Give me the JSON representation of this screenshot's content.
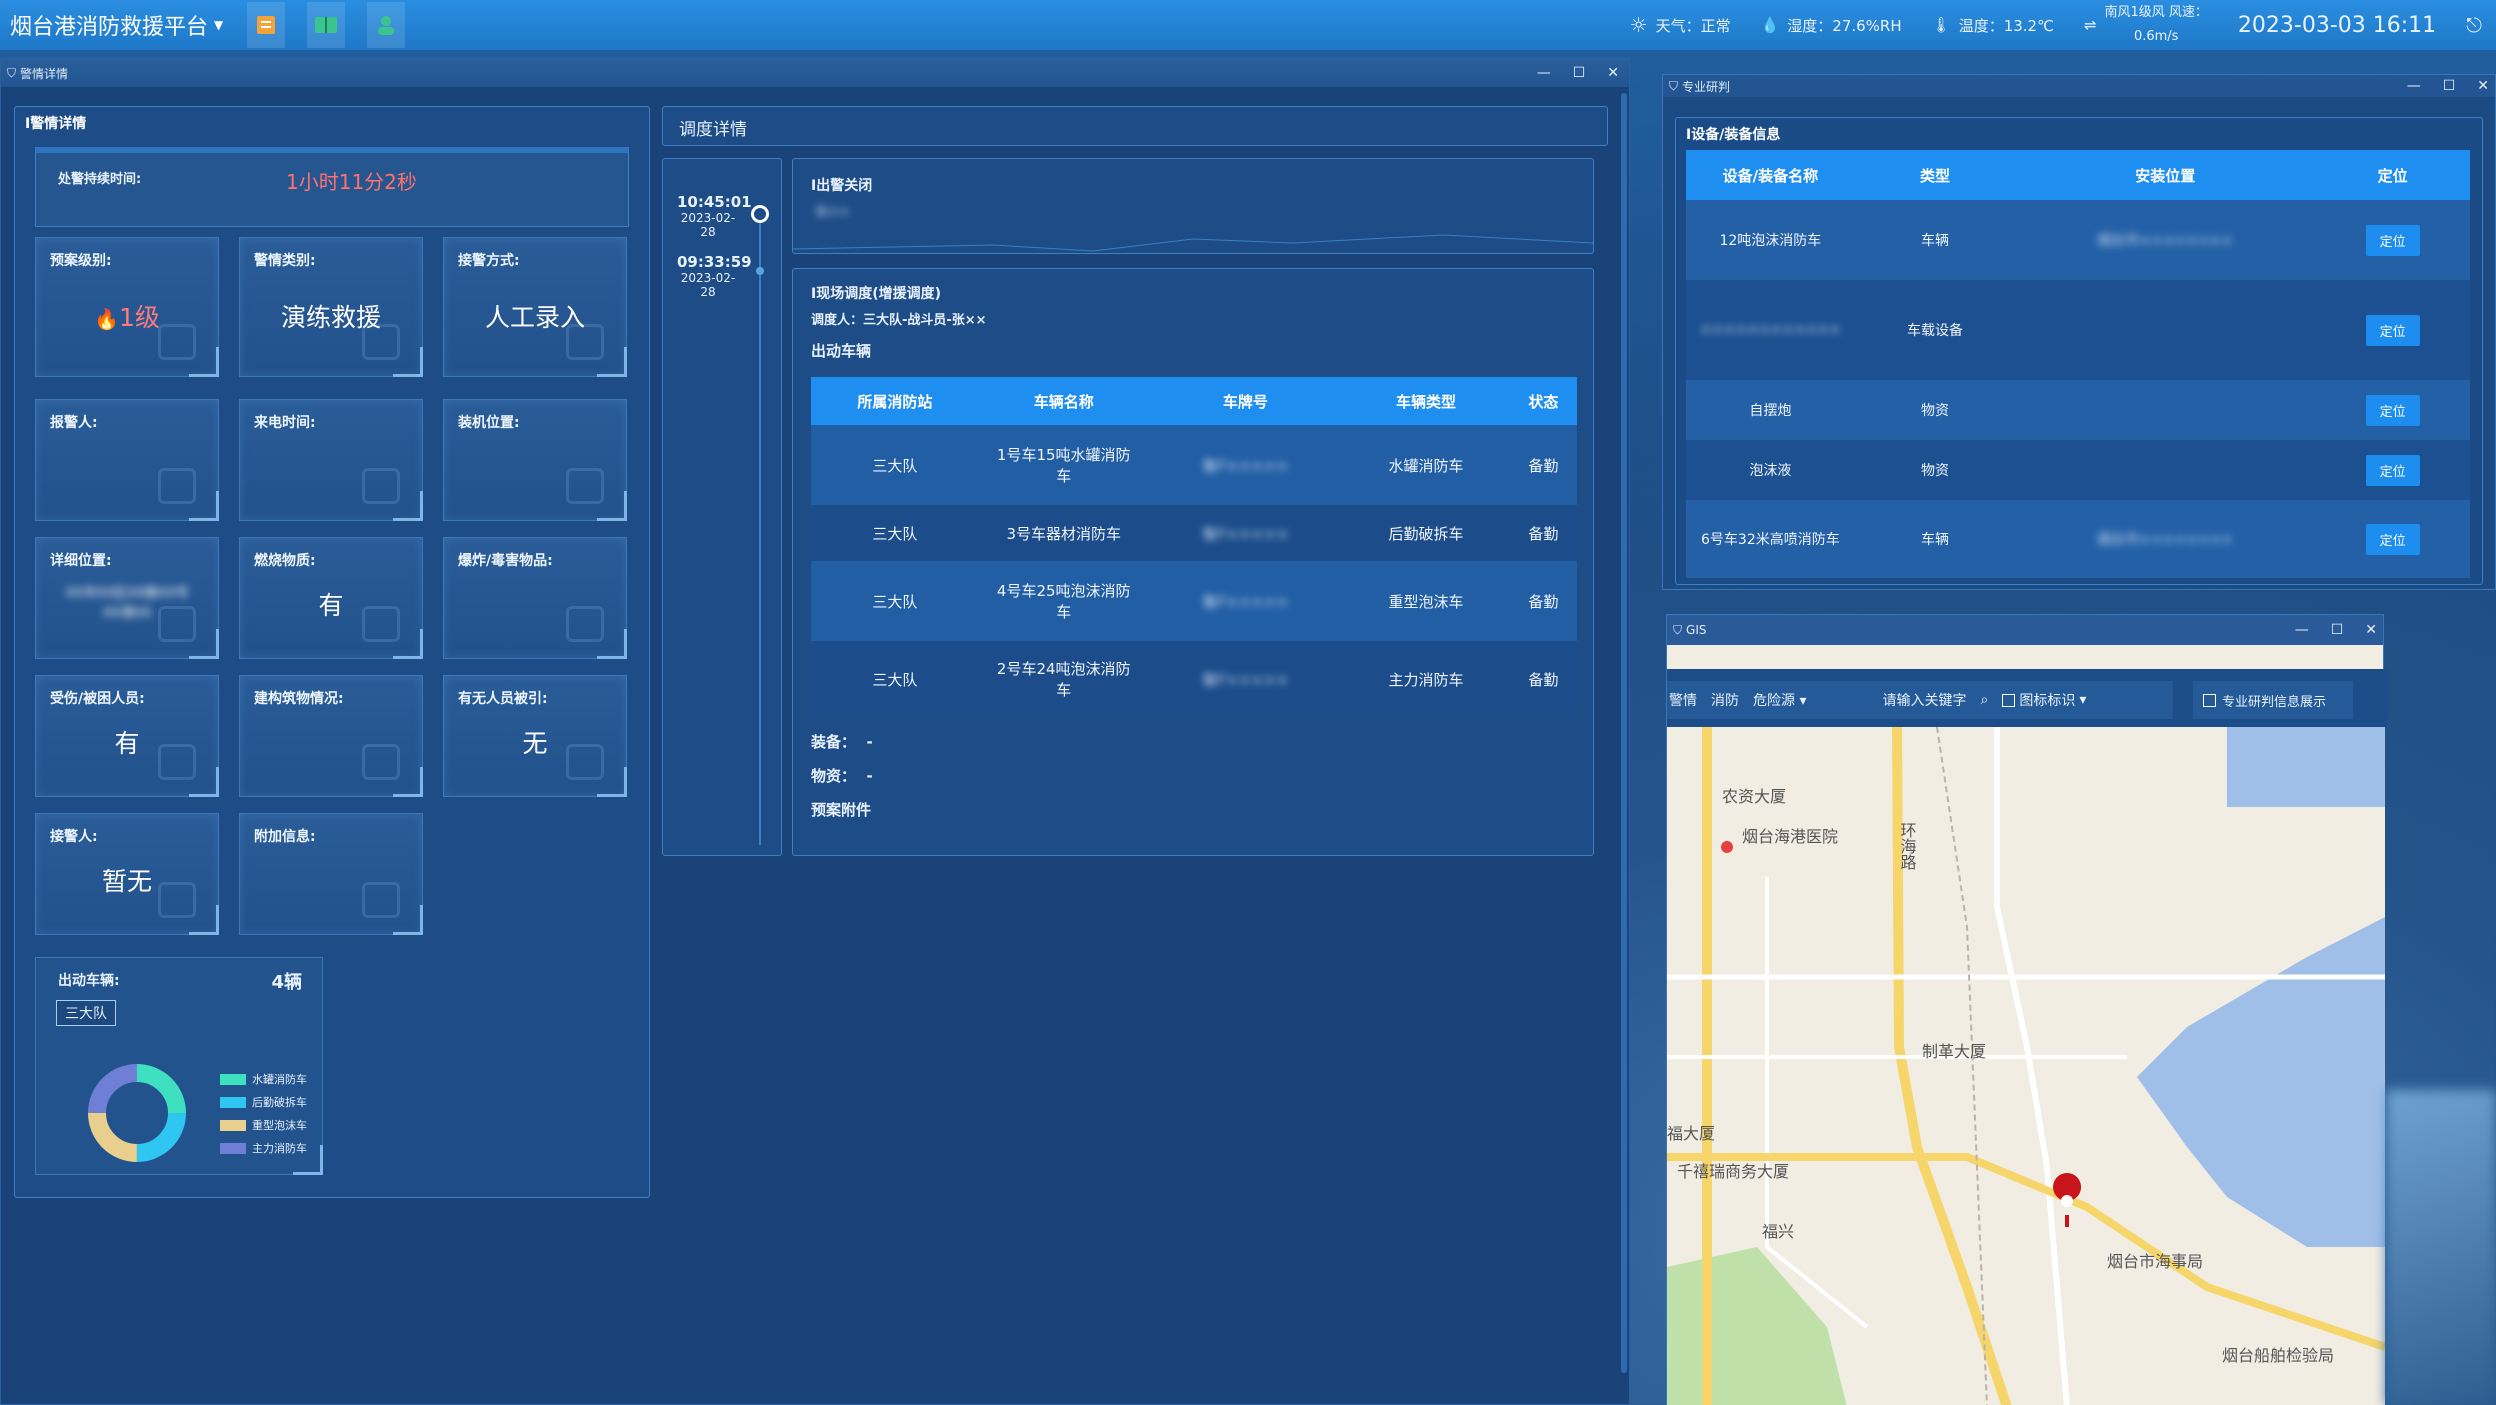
{
  "topbar": {
    "app_title": "烟台港消防救援平台",
    "weather": "天气：正常",
    "humidity": "湿度：27.6%RH",
    "temperature": "温度：13.2℃",
    "wind_line1": "南风1级风 风速：",
    "wind_line2": "0.6m/s",
    "datetime": "2023-03-03 16:11"
  },
  "alarm_window": {
    "title": "警情详情",
    "panel_title": "警情详情",
    "duration_label": "处警持续时间:",
    "duration_value": "1小时11分2秒",
    "cards": [
      {
        "label": "预案级别:",
        "value": "1级"
      },
      {
        "label": "警情类别:",
        "value": "演练救援"
      },
      {
        "label": "接警方式:",
        "value": "人工录入"
      },
      {
        "label": "报警人:",
        "value": ""
      },
      {
        "label": "来电时间:",
        "value": ""
      },
      {
        "label": "装机位置:",
        "value": ""
      },
      {
        "label": "详细位置:",
        "value": "XX市XX区XX路XX号",
        "value2": "XX港XX"
      },
      {
        "label": "燃烧物质:",
        "value": "有"
      },
      {
        "label": "爆炸/毒害物品:",
        "value": ""
      },
      {
        "label": "受伤/被困人员:",
        "value": "有"
      },
      {
        "label": "建构筑物情况:",
        "value": ""
      },
      {
        "label": "有无人员被引:",
        "value": "无"
      },
      {
        "label": "接警人:",
        "value": "暂无"
      },
      {
        "label": "附加信息:",
        "value": ""
      }
    ],
    "vehicles_label": "出动车辆:",
    "vehicles_count": "4辆",
    "brigade_tag": "三大队",
    "legend": [
      "水罐消防车",
      "后勤破拆车",
      "重型泡沫车",
      "主力消防车"
    ]
  },
  "dispatch": {
    "title": "调度详情",
    "timeline": [
      {
        "time": "10:45:01",
        "date": "2023-02-28"
      },
      {
        "time": "09:33:59",
        "date": "2023-02-28"
      }
    ],
    "close_title": "出警关闭",
    "close_blur": "张××",
    "onsite_title": "现场调度(增援调度)",
    "dispatcher": "调度人：三大队-战斗员-张××",
    "vehicles_heading": "出动车辆",
    "table": {
      "headers": [
        "所属消防站",
        "车辆名称",
        "车牌号",
        "车辆类型",
        "状态"
      ],
      "rows": [
        [
          "三大队",
          "1号车15吨水罐消防车",
          "鲁F×××××",
          "水罐消防车",
          "备勤"
        ],
        [
          "三大队",
          "3号车器材消防车",
          "鲁F×××××",
          "后勤破拆车",
          "备勤"
        ],
        [
          "三大队",
          "4号车25吨泡沫消防车",
          "鲁F×××××",
          "重型泡沫车",
          "备勤"
        ],
        [
          "三大队",
          "2号车24吨泡沫消防车",
          "鲁F×××××",
          "主力消防车",
          "备勤"
        ]
      ]
    },
    "equipment": "装备：  -",
    "materials": "物资：  -",
    "plan_attachment": "预案附件"
  },
  "research": {
    "title": "专业研判",
    "panel_title": "设备/装备信息",
    "headers": [
      "设备/装备名称",
      "类型",
      "安装位置",
      "定位"
    ],
    "rows": [
      {
        "name": "12吨泡沫消防车",
        "type": "车辆",
        "location": "烟台市××××××××",
        "btn": "定位"
      },
      {
        "name": "××××××××××××",
        "type": "车载设备",
        "location": "",
        "btn": "定位"
      },
      {
        "name": "自摆炮",
        "type": "物资",
        "location": "",
        "btn": "定位"
      },
      {
        "name": "泡沫液",
        "type": "物资",
        "location": "",
        "btn": "定位"
      },
      {
        "name": "6号车32米高喷消防车",
        "type": "车辆",
        "location": "烟台市××××××××",
        "btn": "定位"
      }
    ]
  },
  "gis": {
    "title": "GIS",
    "tool_items": [
      "警情",
      "消防",
      "危险源"
    ],
    "search_placeholder": "请输入关键字",
    "layer_label": "图标标识",
    "research_toggle": "专业研判信息展示",
    "places": [
      "农资大厦",
      "烟台海港医院",
      "环海路",
      "制革大厦",
      "福大厦",
      "千禧瑞商务大厦",
      "福兴",
      "烟台市海事局",
      "烟台船舶检验局"
    ]
  }
}
